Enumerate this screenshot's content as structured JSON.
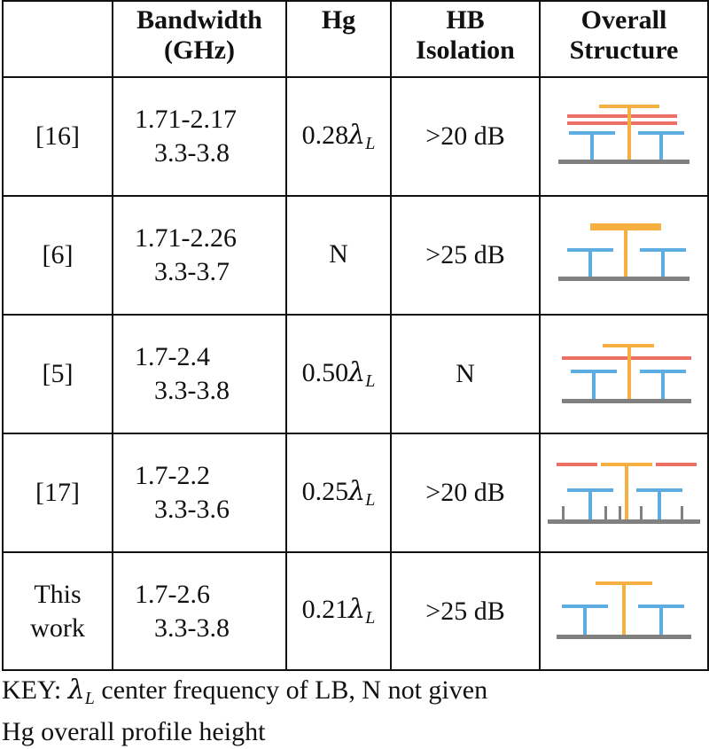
{
  "table": {
    "headers": {
      "ref": "",
      "bandwidth_line1": "Bandwidth",
      "bandwidth_line2": "(GHz)",
      "hg": "Hg",
      "hb_line1": "HB",
      "hb_line2": "Isolation",
      "struct_line1": "Overall",
      "struct_line2": "Structure"
    },
    "rows": [
      {
        "ref": "[16]",
        "bw1": "1.71-2.17",
        "bw2": "3.3-3.8",
        "hg_num": "0.28",
        "hg_sym": "λ",
        "hg_sub": "L",
        "iso": ">20 dB",
        "struct_icon": "antenna-structure-16-icon"
      },
      {
        "ref": "[6]",
        "bw1": "1.71-2.26",
        "bw2": "3.3-3.7",
        "hg_num": "N",
        "hg_sym": "",
        "hg_sub": "",
        "iso": ">25 dB",
        "struct_icon": "antenna-structure-6-icon"
      },
      {
        "ref": "[5]",
        "bw1": "1.7-2.4",
        "bw2": "3.3-3.8",
        "hg_num": "0.50",
        "hg_sym": "λ",
        "hg_sub": "L",
        "iso": "N",
        "struct_icon": "antenna-structure-5-icon"
      },
      {
        "ref": "[17]",
        "bw1": "1.7-2.2",
        "bw2": "3.3-3.6",
        "hg_num": "0.25",
        "hg_sym": "λ",
        "hg_sub": "L",
        "iso": ">20 dB",
        "struct_icon": "antenna-structure-17-icon"
      },
      {
        "ref_line1": "This",
        "ref_line2": "work",
        "bw1": "1.7-2.6",
        "bw2": "3.3-3.8",
        "hg_num": "0.21",
        "hg_sym": "λ",
        "hg_sub": "L",
        "iso": ">25 dB",
        "struct_icon": "antenna-structure-this-work-icon"
      }
    ]
  },
  "key": {
    "line1_prefix": "KEY: ",
    "line1_sym": "λ",
    "line1_sub": "L",
    "line1_rest": " center frequency of LB, N not given",
    "line2": "Hg overall profile height"
  },
  "colors": {
    "lb_orange": "#F5B041",
    "hb_blue": "#5DADE2",
    "parasitic_red": "#EC7063",
    "ground_gray": "#808080",
    "border": "#111111"
  }
}
